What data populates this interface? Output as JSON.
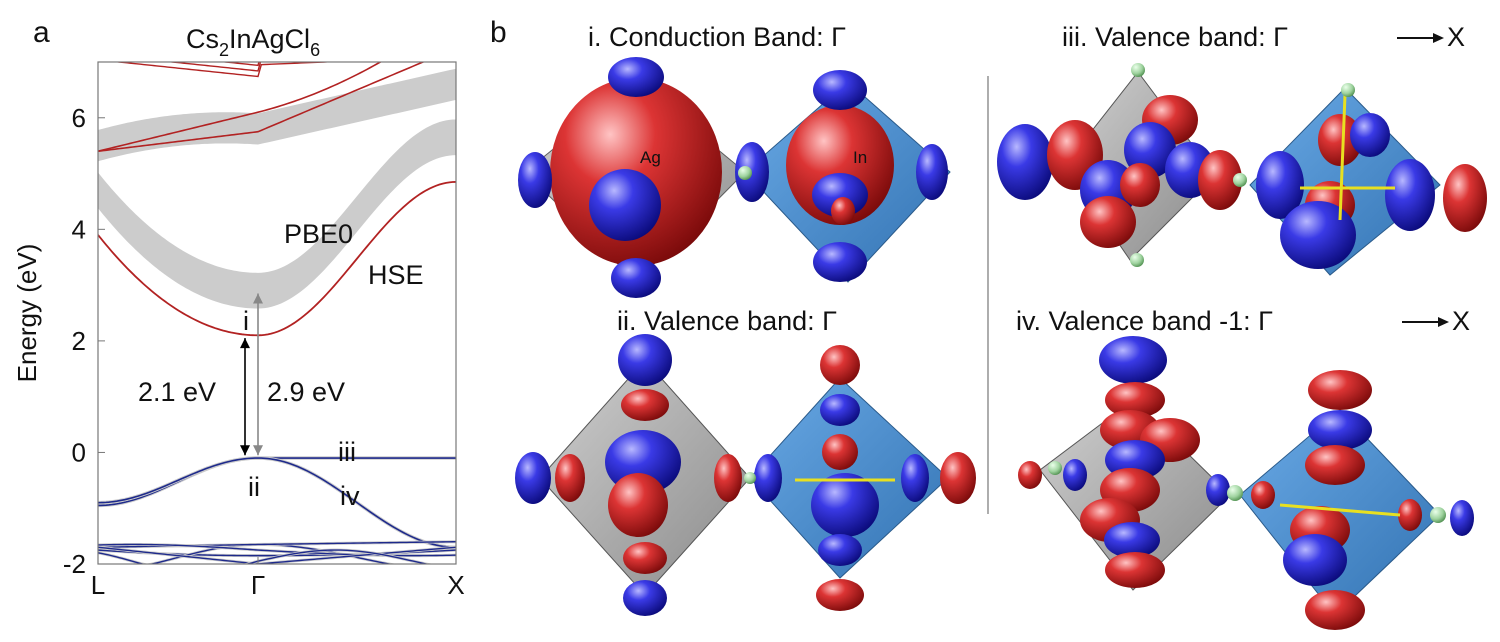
{
  "panel_a": {
    "letter": "a",
    "title_parts": [
      "Cs",
      "2",
      "InAgCl",
      "6"
    ],
    "chart_data": {
      "type": "line",
      "ylabel": "Energy (eV)",
      "ylim": [
        -2,
        7
      ],
      "yticks": [
        -2,
        0,
        2,
        4,
        6
      ],
      "xticks": [
        "L",
        "Γ",
        "X"
      ],
      "series": [
        {
          "name": "PBE0",
          "color": "#cccccc"
        },
        {
          "name": "HSE",
          "color": "#b22222"
        }
      ],
      "annotations": {
        "gap_hse": "2.1 eV",
        "gap_pbe0": "2.9 eV",
        "point_i": "i",
        "point_ii": "ii",
        "point_iii": "iii",
        "point_iv": "iv"
      },
      "colors": {
        "valence": "#1e2a8c",
        "pbe0": "#cccccc",
        "hse": "#b22222"
      }
    }
  },
  "panel_b": {
    "letter": "b",
    "titles": {
      "i": "i. Conduction Band: Γ",
      "ii": "ii. Valence band: Γ",
      "iii_prefix": "iii. Valence band: Γ",
      "iii_suffix": "X",
      "iv_prefix": "iv. Valence band -1: Γ",
      "iv_suffix": "X"
    },
    "atom_labels": {
      "ag": "Ag",
      "in": "In"
    },
    "colors": {
      "positive": "#d42a2a",
      "negative": "#2a2ad4",
      "ag_octa": "#a8a8a8",
      "in_octa": "#4a8fd0",
      "cl": "#9fd39f",
      "bond": "#e8e020"
    }
  }
}
